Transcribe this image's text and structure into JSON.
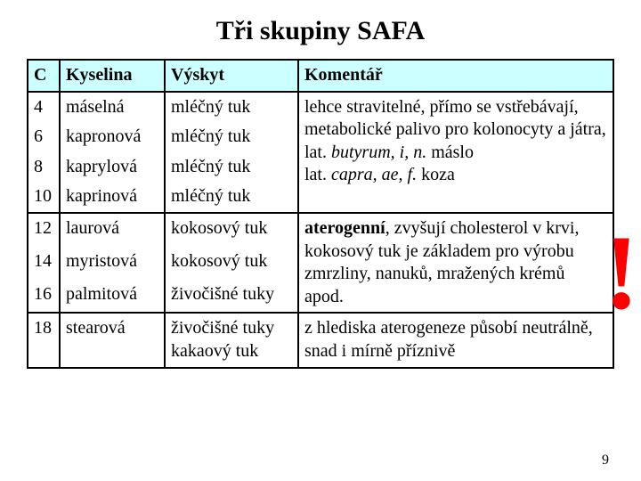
{
  "title": "Tři skupiny SAFA",
  "page_number": "9",
  "marker": "!",
  "colors": {
    "header_bg": "#ccffff",
    "border": "#000000",
    "marker": "#ff0000",
    "background": "#ffffff",
    "text": "#000000"
  },
  "columns": {
    "c": "C",
    "acid": "Kyselina",
    "occ": "Výskyt",
    "comment": "Komentář"
  },
  "g1": {
    "r1": {
      "c": "4",
      "acid": "máselná",
      "occ": "mléčný tuk"
    },
    "r2": {
      "c": "6",
      "acid": "kapronová",
      "occ": "mléčný tuk"
    },
    "r3": {
      "c": "8",
      "acid": "kaprylová",
      "occ": "mléčný tuk"
    },
    "r4": {
      "c": "10",
      "acid": "kaprinová",
      "occ": "mléčný tuk"
    },
    "comment": {
      "l1": "lehce stravitelné, přímo se vstřebávají,",
      "l2": "metabolické palivo pro kolonocyty a játra,",
      "l3a": "lat. ",
      "l3b": "butyrum, i, n.",
      "l3c": " máslo",
      "l4a": "lat. ",
      "l4b": "capra, ae, f.",
      "l4c": " koza"
    }
  },
  "g2": {
    "r1": {
      "c": "12",
      "acid": "laurová",
      "occ": "kokosový tuk"
    },
    "r2": {
      "c": "14",
      "acid": "myristová",
      "occ": "kokosový tuk"
    },
    "r3": {
      "c": "16",
      "acid": "palmitová",
      "occ": "živočišné tuky"
    },
    "comment": {
      "l1a": "aterogenní",
      "l1b": ", zvyšují cholesterol v krvi,",
      "l2": "kokosový tuk je základem pro výrobu",
      "l3": "zmrzliny, nanuků, mražených krémů apod."
    }
  },
  "g3": {
    "r1": {
      "c": "18",
      "acid": "stearová",
      "occ1": "živočišné tuky",
      "occ2": "kakaový tuk"
    },
    "comment": {
      "l1": "z hlediska aterogeneze působí neutrálně,",
      "l2": "snad i mírně příznivě"
    }
  }
}
